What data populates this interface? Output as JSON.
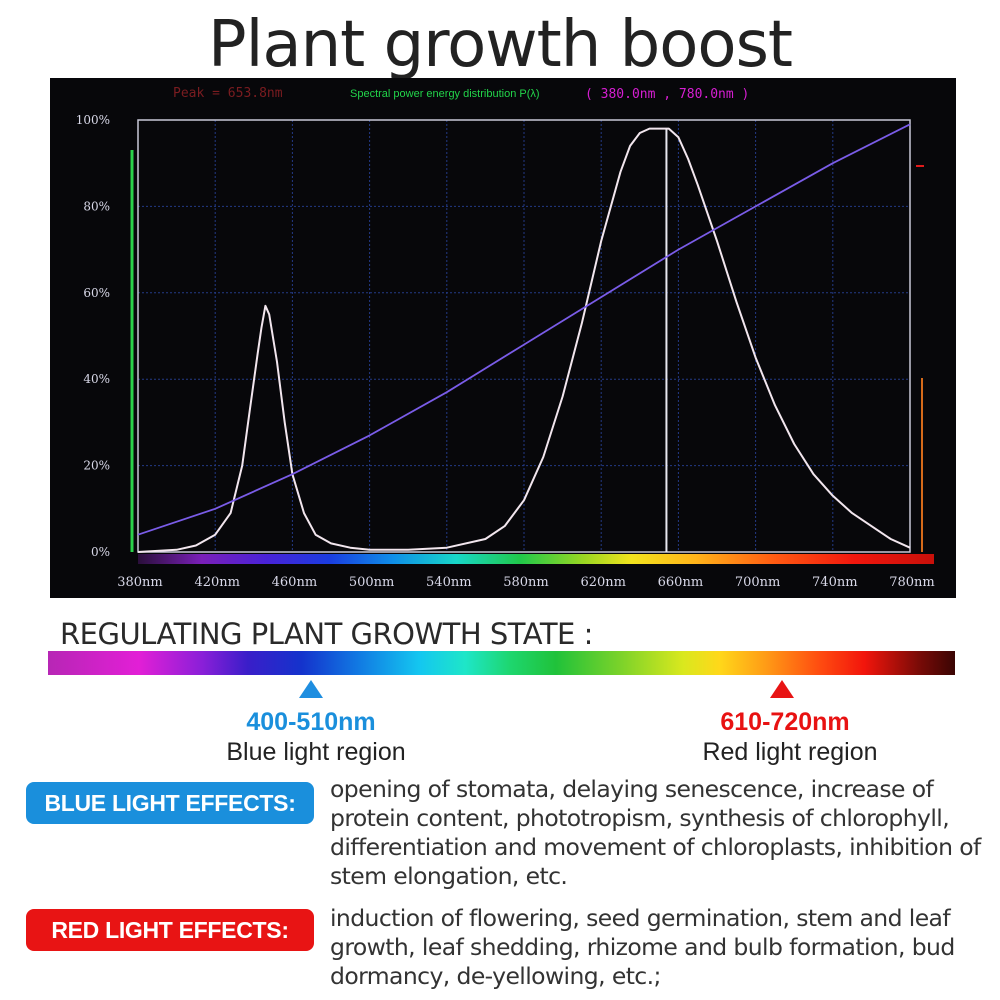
{
  "title": "Plant growth boost",
  "chart_data": {
    "type": "line",
    "header": {
      "peak_text": "Peak = 653.8nm",
      "center_text": "Spectral power energy distribution P(λ)",
      "range_text": "( 380.0nm , 780.0nm )"
    },
    "x_ticks": [
      "380nm",
      "420nm",
      "460nm",
      "500nm",
      "540nm",
      "580nm",
      "620nm",
      "660nm",
      "700nm",
      "740nm",
      "780nm"
    ],
    "y_ticks": [
      "0%",
      "20%",
      "40%",
      "60%",
      "80%",
      "100%"
    ],
    "xlim": [
      380,
      780
    ],
    "ylim": [
      0,
      100
    ],
    "grid": true,
    "peak_marker_x": 653.8,
    "series": [
      {
        "color": "#f2e6ee",
        "x": [
          380,
          400,
          410,
          420,
          428,
          434,
          438,
          442,
          444,
          446,
          448,
          452,
          456,
          460,
          466,
          472,
          480,
          490,
          500,
          520,
          540,
          560,
          570,
          580,
          590,
          600,
          610,
          620,
          630,
          635,
          640,
          645,
          650,
          655,
          660,
          665,
          670,
          680,
          690,
          700,
          710,
          720,
          730,
          740,
          750,
          760,
          770,
          780
        ],
        "y": [
          0,
          0.5,
          1.5,
          4,
          9,
          20,
          33,
          46,
          52,
          57,
          55,
          44,
          30,
          18,
          9,
          4,
          2,
          1,
          0.5,
          0.5,
          1,
          3,
          6,
          12,
          22,
          36,
          53,
          72,
          88,
          94,
          97,
          98,
          98,
          98,
          96,
          91,
          85,
          72,
          58,
          45,
          34,
          25,
          18,
          13,
          9,
          6,
          3,
          1
        ]
      },
      {
        "color": "#7a5ce8",
        "x": [
          380,
          420,
          460,
          500,
          540,
          580,
          620,
          660,
          700,
          740,
          780
        ],
        "y": [
          4,
          10,
          18,
          27,
          37,
          48,
          59,
          70,
          80,
          90,
          99
        ]
      }
    ]
  },
  "section_heading": "REGULATING PLANT GROWTH STATE :",
  "blue_region": {
    "range": "400-510nm",
    "label": "Blue light region",
    "badge": "BLUE LIGHT EFFECTS:",
    "effects": "opening of stomata, delaying senescence, increase of protein content, phototropism, synthesis of chlorophyll, differentiation and movement of chloroplasts, inhibition of stem elongation, etc.",
    "color": "#1a8fdc"
  },
  "red_region": {
    "range": "610-720nm",
    "label": "Red light region",
    "badge": "RED LIGHT EFFECTS:",
    "effects": "induction of flowering, seed germination, stem and leaf growth, leaf shedding, rhizome and bulb formation, bud dormancy, de-yellowing, etc.;",
    "color": "#e81414"
  }
}
